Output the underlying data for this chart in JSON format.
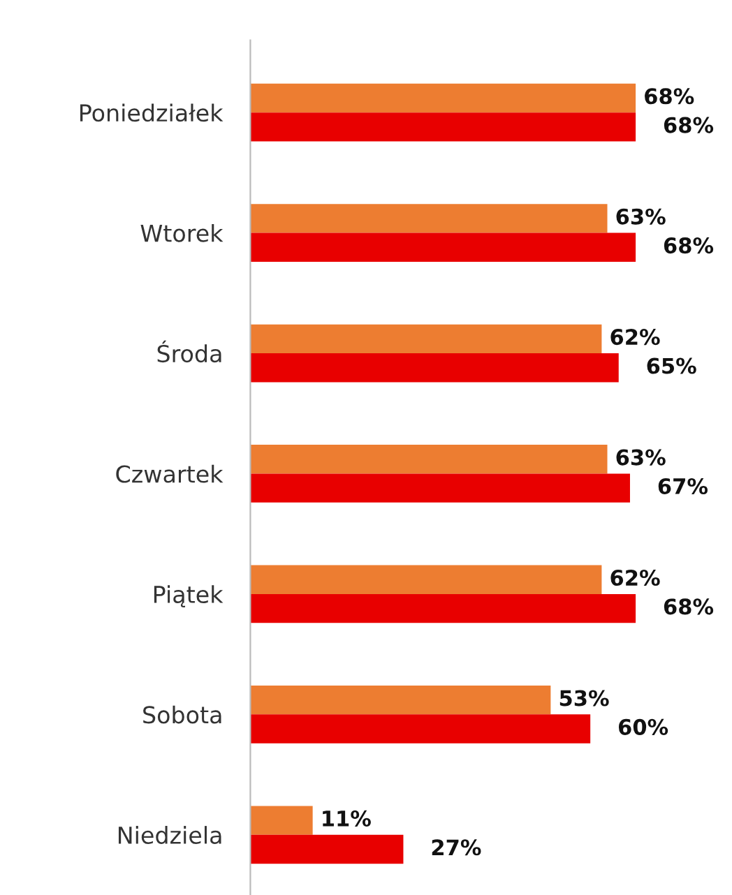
{
  "chart_data": {
    "type": "bar",
    "orientation": "horizontal",
    "categories": [
      "Poniedziałek",
      "Wtorek",
      "Środa",
      "Czwartek",
      "Piątek",
      "Sobota",
      "Niedziela"
    ],
    "series": [
      {
        "color": "#ed7d31",
        "values": [
          68,
          63,
          62,
          63,
          62,
          53,
          11
        ],
        "value_labels": [
          "68%",
          "63%",
          "62%",
          "63%",
          "62%",
          "53%",
          "11%"
        ]
      },
      {
        "color": "#e80000",
        "values": [
          68,
          68,
          65,
          67,
          68,
          60,
          27
        ],
        "value_labels": [
          "68%",
          "68%",
          "65%",
          "67%",
          "68%",
          "60%",
          "27%"
        ]
      }
    ],
    "grid": false,
    "legend": false
  }
}
